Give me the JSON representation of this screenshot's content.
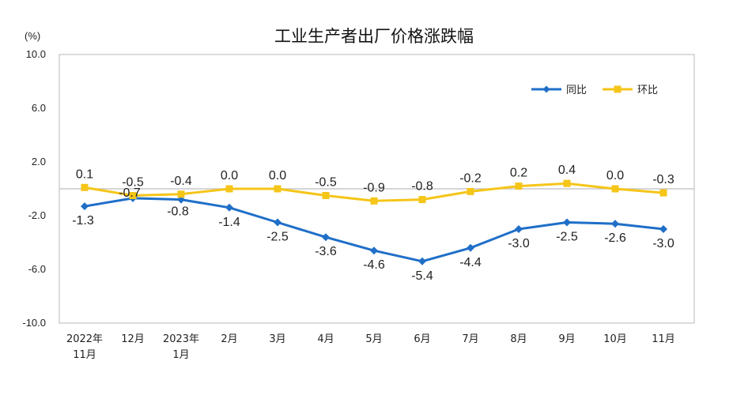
{
  "chart_data": {
    "type": "line",
    "title": "工业生产者出厂价格涨跌幅",
    "unit_label": "(%)",
    "categories": [
      [
        "2022年",
        "11月"
      ],
      [
        "12月"
      ],
      [
        "2023年",
        "1月"
      ],
      [
        "2月"
      ],
      [
        "3月"
      ],
      [
        "4月"
      ],
      [
        "5月"
      ],
      [
        "6月"
      ],
      [
        "7月"
      ],
      [
        "8月"
      ],
      [
        "9月"
      ],
      [
        "10月"
      ],
      [
        "11月"
      ]
    ],
    "yticks": [
      "10.0",
      "6.0",
      "2.0",
      "-2.0",
      "-6.0",
      "-10.0"
    ],
    "ylim": [
      -10,
      10
    ],
    "ytick_values": [
      10,
      6,
      2,
      -2,
      -6,
      -10
    ],
    "legend_position": "top-right",
    "series": [
      {
        "name": "同比",
        "color": "#1f6fc8",
        "marker": "diamond",
        "values": [
          -1.3,
          -0.7,
          -0.8,
          -1.4,
          -2.5,
          -3.6,
          -4.6,
          -5.4,
          -4.4,
          -3.0,
          -2.5,
          -2.6,
          -3.0
        ],
        "labels": [
          "-1.3",
          "-0.7",
          "-0.8",
          "-1.4",
          "-2.5",
          "-3.6",
          "-4.6",
          "-5.4",
          "-4.4",
          "-3.0",
          "-2.5",
          "-2.6",
          "-3.0"
        ]
      },
      {
        "name": "环比",
        "color": "#f5c518",
        "marker": "square",
        "values": [
          0.1,
          -0.5,
          -0.4,
          0.0,
          0.0,
          -0.5,
          -0.9,
          -0.8,
          -0.2,
          0.2,
          0.4,
          0.0,
          -0.3
        ],
        "labels": [
          "0.1",
          "-0.5",
          "-0.4",
          "0.0",
          "0.0",
          "-0.5",
          "-0.9",
          "-0.8",
          "-0.2",
          "0.2",
          "0.4",
          "0.0",
          "-0.3"
        ]
      }
    ]
  }
}
